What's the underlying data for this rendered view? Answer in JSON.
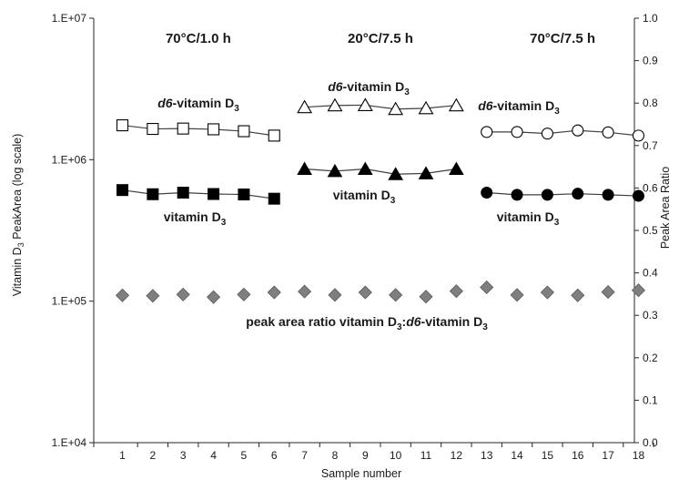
{
  "chart_data": {
    "type": "scatter",
    "x": [
      1,
      2,
      3,
      4,
      5,
      6,
      7,
      8,
      9,
      10,
      11,
      12,
      13,
      14,
      15,
      16,
      17,
      18
    ],
    "x_tick_labels": [
      "1",
      "2",
      "3",
      "4",
      "5",
      "6",
      "7",
      "8",
      "9",
      "10",
      "11",
      "12",
      "13",
      "14",
      "15",
      "16",
      "17",
      "18"
    ],
    "xlabel": "Sample number",
    "ylabel_left": "Vitamin D3 PeakArea (log scale)",
    "ylabel_left_parts": {
      "before": "Vitamin D",
      "sub": "3",
      "after": " PeakArea (log scale)"
    },
    "ylabel_right": "Peak Area Ratio",
    "y_left": {
      "scale": "log",
      "lim": [
        10000,
        10000000
      ],
      "tick_values": [
        10000,
        100000,
        1000000,
        10000000
      ],
      "tick_labels": [
        "1.E+04",
        "1.E+05",
        "1.E+06",
        "1.E+07"
      ]
    },
    "y_right": {
      "scale": "linear",
      "lim": [
        0.0,
        1.0
      ],
      "tick_values": [
        0.0,
        0.1,
        0.2,
        0.3,
        0.4,
        0.5,
        0.6,
        0.7,
        0.8,
        0.9,
        1.0
      ],
      "tick_labels": [
        "0.0",
        "0.1",
        "0.2",
        "0.3",
        "0.4",
        "0.5",
        "0.6",
        "0.7",
        "0.8",
        "0.9",
        "1.0"
      ]
    },
    "condition_headers": [
      {
        "text": "70°C/1.0 h",
        "samples": [
          1,
          6
        ]
      },
      {
        "text": "20°C/7.5 h",
        "samples": [
          7,
          12
        ]
      },
      {
        "text": "70°C/7.5 h",
        "samples": [
          13,
          18
        ]
      }
    ],
    "series": [
      {
        "group": 1,
        "axis": "left",
        "marker": "open-square",
        "x": [
          1,
          2,
          3,
          4,
          5,
          6
        ],
        "values": [
          1750000,
          1650000,
          1660000,
          1640000,
          1590000,
          1480000
        ]
      },
      {
        "group": 1,
        "axis": "left",
        "marker": "filled-square",
        "x": [
          1,
          2,
          3,
          4,
          5,
          6
        ],
        "values": [
          610000,
          570000,
          585000,
          572000,
          568000,
          530000
        ]
      },
      {
        "group": 2,
        "axis": "left",
        "marker": "open-triangle",
        "x": [
          7,
          8,
          9,
          10,
          11,
          12
        ],
        "values": [
          2350000,
          2420000,
          2430000,
          2280000,
          2310000,
          2420000
        ]
      },
      {
        "group": 2,
        "axis": "left",
        "marker": "filled-triangle",
        "x": [
          7,
          8,
          9,
          10,
          11,
          12
        ],
        "values": [
          860000,
          830000,
          860000,
          790000,
          800000,
          860000
        ]
      },
      {
        "group": 3,
        "axis": "left",
        "marker": "open-circle",
        "x": [
          13,
          14,
          15,
          16,
          17,
          18
        ],
        "values": [
          1570000,
          1570000,
          1530000,
          1610000,
          1560000,
          1480000
        ]
      },
      {
        "group": 3,
        "axis": "left",
        "marker": "filled-circle",
        "x": [
          13,
          14,
          15,
          16,
          17,
          18
        ],
        "values": [
          585000,
          565000,
          565000,
          575000,
          565000,
          555000
        ]
      },
      {
        "group": "ratio",
        "axis": "right",
        "marker": "diamond",
        "x": [
          1,
          2,
          3,
          4,
          5,
          6,
          7,
          8,
          9,
          10,
          11,
          12,
          13,
          14,
          15,
          16,
          17,
          18
        ],
        "values": [
          0.347,
          0.346,
          0.349,
          0.343,
          0.349,
          0.354,
          0.356,
          0.348,
          0.354,
          0.348,
          0.344,
          0.357,
          0.366,
          0.348,
          0.354,
          0.347,
          0.355,
          0.359
        ]
      }
    ],
    "annotations": [
      {
        "id": "d6-1",
        "pre": "",
        "italic": "d6",
        "mid": "-vitamin D",
        "sub": "3",
        "post": ""
      },
      {
        "id": "d6-2",
        "pre": "",
        "italic": "d6",
        "mid": "-vitamin D",
        "sub": "3",
        "post": ""
      },
      {
        "id": "d6-3",
        "pre": "",
        "italic": "d6",
        "mid": "-vitamin D",
        "sub": "3",
        "post": ""
      },
      {
        "id": "vd-1",
        "pre": "vitamin D",
        "sub": "3"
      },
      {
        "id": "vd-2",
        "pre": "vitamin D",
        "sub": "3"
      },
      {
        "id": "vd-3",
        "pre": "vitamin D",
        "sub": "3"
      },
      {
        "id": "ratio",
        "pre": "peak area ratio vitamin D",
        "sub": "3",
        "mid": ":",
        "italic": "d6",
        "post": "-vitamin D",
        "sub2": "3"
      }
    ],
    "grid": false,
    "legend": "none"
  },
  "colors": {
    "marker_fill": "#000000",
    "marker_open": "#ffffff",
    "diamond": "#7f7f7f",
    "line": "#404040"
  }
}
